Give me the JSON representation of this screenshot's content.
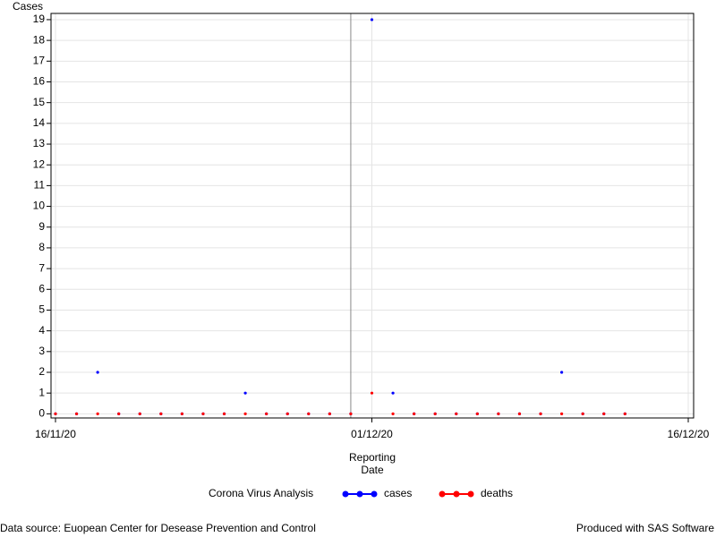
{
  "chart_data": {
    "type": "line",
    "ylabel": "Cases",
    "xlabel": [
      "Reporting",
      "Date"
    ],
    "x": [
      "16/11/20",
      "17/11/20",
      "18/11/20",
      "19/11/20",
      "20/11/20",
      "21/11/20",
      "22/11/20",
      "23/11/20",
      "24/11/20",
      "25/11/20",
      "26/11/20",
      "27/11/20",
      "28/11/20",
      "29/11/20",
      "30/11/20",
      "01/12/20",
      "02/12/20",
      "03/12/20",
      "04/12/20",
      "05/12/20",
      "06/12/20",
      "07/12/20",
      "08/12/20",
      "09/12/20",
      "10/12/20",
      "11/12/20",
      "12/12/20",
      "13/12/20"
    ],
    "series": [
      {
        "name": "cases",
        "color": "#0000ff",
        "values": [
          0,
          0,
          2,
          0,
          0,
          0,
          0,
          0,
          0,
          1,
          0,
          0,
          0,
          0,
          0,
          19,
          1,
          0,
          0,
          0,
          0,
          0,
          0,
          0,
          2,
          0,
          0,
          0
        ]
      },
      {
        "name": "deaths",
        "color": "#ff0000",
        "values": [
          0,
          0,
          0,
          0,
          0,
          0,
          0,
          0,
          0,
          0,
          0,
          0,
          0,
          0,
          0,
          1,
          0,
          0,
          0,
          0,
          0,
          0,
          0,
          0,
          0,
          0,
          0,
          0
        ]
      }
    ],
    "xlim": [
      "16/11/20",
      "16/12/20"
    ],
    "xticks": [
      "16/11/20",
      "01/12/20",
      "16/12/20"
    ],
    "ylim": [
      -0.2,
      19.3
    ],
    "yticks": [
      0,
      1,
      2,
      3,
      4,
      5,
      6,
      7,
      8,
      9,
      10,
      11,
      12,
      13,
      14,
      15,
      16,
      17,
      18,
      19
    ],
    "grid": true,
    "reference_line_x": "30/11/20",
    "legend_title": "Corona Virus Analysis",
    "legend_position": "bottom",
    "footnote_left": "Data source: Euopean Center for Desease Prevention and Control",
    "footnote_right": "Produced with SAS Software"
  }
}
